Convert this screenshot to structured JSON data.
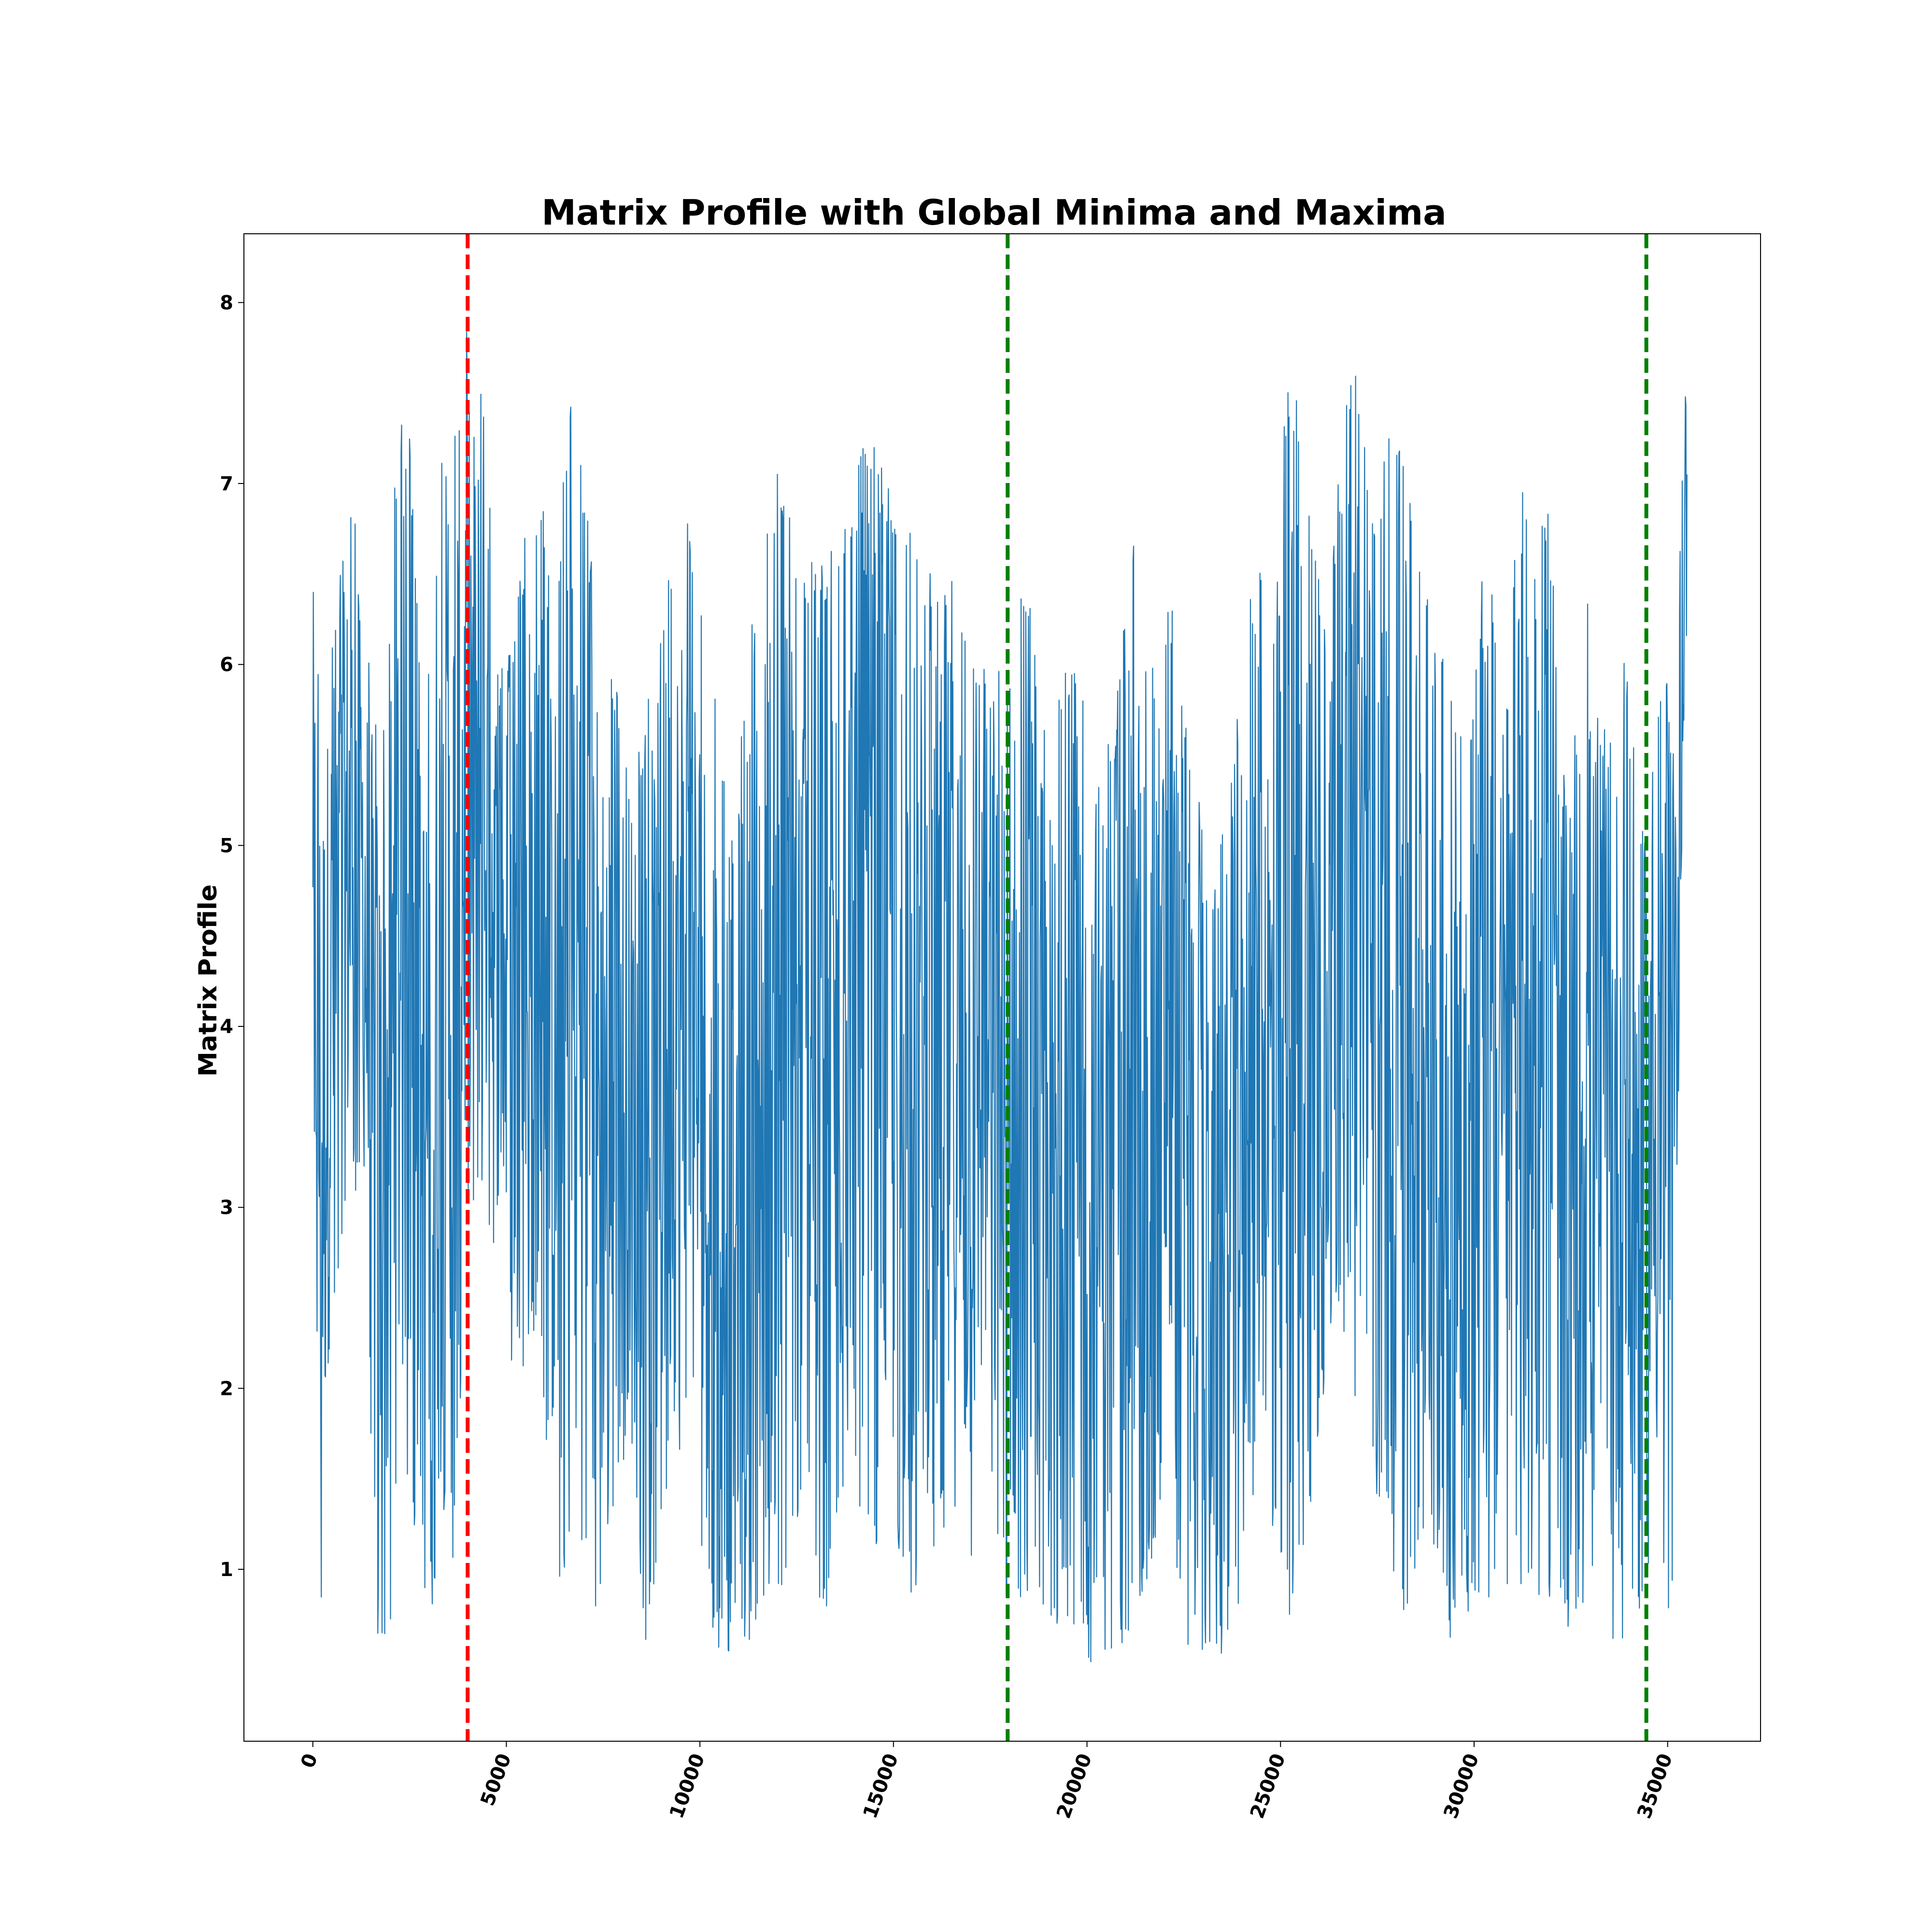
{
  "chart_data": {
    "type": "line",
    "title": "Matrix Profile with Global Minima and Maxima",
    "xlabel": "",
    "ylabel": "Matrix Profile",
    "xlim": [
      -1780,
      37400
    ],
    "ylim": [
      0.05,
      8.38
    ],
    "xticks": [
      0,
      5000,
      10000,
      15000,
      20000,
      25000,
      30000,
      35000
    ],
    "yticks": [
      1,
      2,
      3,
      4,
      5,
      6,
      7,
      8
    ],
    "xtick_rotation": 70,
    "grid": false,
    "series": [
      {
        "color": "#1f77b4",
        "x_range": [
          0,
          35500
        ],
        "envelope_upper": [
          [
            0,
            6.7
          ],
          [
            200,
            5.8
          ],
          [
            600,
            6.4
          ],
          [
            1000,
            7.0
          ],
          [
            1400,
            6.2
          ],
          [
            1800,
            5.6
          ],
          [
            2200,
            7.4
          ],
          [
            2500,
            7.3
          ],
          [
            2800,
            5.8
          ],
          [
            3200,
            7.4
          ],
          [
            3500,
            7.0
          ],
          [
            3800,
            7.8
          ],
          [
            4000,
            7.95
          ],
          [
            4400,
            7.6
          ],
          [
            4800,
            6.0
          ],
          [
            5200,
            6.2
          ],
          [
            5800,
            7.3
          ],
          [
            6200,
            6.2
          ],
          [
            6700,
            7.7
          ],
          [
            7200,
            6.6
          ],
          [
            7800,
            5.9
          ],
          [
            8400,
            5.5
          ],
          [
            9000,
            6.3
          ],
          [
            9600,
            7.0
          ],
          [
            10200,
            6.0
          ],
          [
            10800,
            5.4
          ],
          [
            11200,
            6.0
          ],
          [
            11800,
            6.9
          ],
          [
            12000,
            7.1
          ],
          [
            12600,
            6.6
          ],
          [
            13200,
            6.6
          ],
          [
            13800,
            6.8
          ],
          [
            14100,
            7.3
          ],
          [
            14300,
            7.3
          ],
          [
            14700,
            7.1
          ],
          [
            15200,
            6.9
          ],
          [
            15600,
            6.6
          ],
          [
            16200,
            6.5
          ],
          [
            16600,
            6.6
          ],
          [
            17000,
            6.2
          ],
          [
            17600,
            6.0
          ],
          [
            18000,
            6.0
          ],
          [
            18400,
            6.6
          ],
          [
            19000,
            5.6
          ],
          [
            19600,
            6.1
          ],
          [
            20200,
            5.9
          ],
          [
            20700,
            5.7
          ],
          [
            21200,
            6.7
          ],
          [
            21600,
            6.0
          ],
          [
            22200,
            6.4
          ],
          [
            22800,
            5.3
          ],
          [
            23400,
            5.0
          ],
          [
            23800,
            5.6
          ],
          [
            24400,
            6.7
          ],
          [
            24800,
            6.1
          ],
          [
            25100,
            7.5
          ],
          [
            25400,
            7.6
          ],
          [
            25800,
            6.9
          ],
          [
            26200,
            6.2
          ],
          [
            26600,
            7.3
          ],
          [
            26900,
            7.7
          ],
          [
            27400,
            6.9
          ],
          [
            27900,
            7.4
          ],
          [
            28400,
            6.9
          ],
          [
            28900,
            6.4
          ],
          [
            29300,
            6.1
          ],
          [
            29800,
            5.4
          ],
          [
            30300,
            6.8
          ],
          [
            30800,
            5.6
          ],
          [
            31200,
            7.2
          ],
          [
            31600,
            6.5
          ],
          [
            31900,
            7.0
          ],
          [
            32400,
            5.2
          ],
          [
            32900,
            6.4
          ],
          [
            33400,
            5.6
          ],
          [
            33900,
            6.1
          ],
          [
            34400,
            5.2
          ],
          [
            34900,
            6.1
          ],
          [
            35200,
            5.5
          ],
          [
            35400,
            7.8
          ]
        ],
        "envelope_lower": [
          [
            0,
            3.8
          ],
          [
            200,
            0.65
          ],
          [
            500,
            2.3
          ],
          [
            900,
            2.8
          ],
          [
            1300,
            3.3
          ],
          [
            1600,
            0.6
          ],
          [
            2000,
            0.65
          ],
          [
            2400,
            1.6
          ],
          [
            2800,
            0.7
          ],
          [
            3200,
            0.85
          ],
          [
            3600,
            0.8
          ],
          [
            4000,
            2.9
          ],
          [
            4400,
            3.0
          ],
          [
            4800,
            2.7
          ],
          [
            5200,
            1.8
          ],
          [
            5800,
            2.4
          ],
          [
            6400,
            0.6
          ],
          [
            6800,
            1.5
          ],
          [
            7200,
            0.6
          ],
          [
            7600,
            1.1
          ],
          [
            8200,
            1.7
          ],
          [
            8600,
            0.6
          ],
          [
            9200,
            1.5
          ],
          [
            9800,
            1.4
          ],
          [
            10400,
            0.55
          ],
          [
            10800,
            0.5
          ],
          [
            11400,
            0.6
          ],
          [
            12000,
            0.7
          ],
          [
            12600,
            1.3
          ],
          [
            13200,
            0.6
          ],
          [
            13800,
            1.6
          ],
          [
            14400,
            1.1
          ],
          [
            15000,
            1.0
          ],
          [
            15600,
            0.8
          ],
          [
            16200,
            1.2
          ],
          [
            16800,
            0.75
          ],
          [
            17400,
            1.6
          ],
          [
            17900,
            0.6
          ],
          [
            18400,
            0.7
          ],
          [
            19000,
            0.55
          ],
          [
            19600,
            0.6
          ],
          [
            20100,
            0.45
          ],
          [
            20800,
            0.55
          ],
          [
            21400,
            0.7
          ],
          [
            22000,
            1.4
          ],
          [
            22600,
            0.55
          ],
          [
            23200,
            0.5
          ],
          [
            23600,
            0.45
          ],
          [
            24000,
            0.9
          ],
          [
            24600,
            1.4
          ],
          [
            25200,
            0.7
          ],
          [
            25800,
            1.3
          ],
          [
            26400,
            2.5
          ],
          [
            27000,
            1.8
          ],
          [
            27600,
            1.3
          ],
          [
            28200,
            0.7
          ],
          [
            28800,
            1.3
          ],
          [
            29400,
            0.6
          ],
          [
            30000,
            0.8
          ],
          [
            30600,
            0.75
          ],
          [
            31200,
            0.7
          ],
          [
            31800,
            0.9
          ],
          [
            32400,
            0.6
          ],
          [
            33000,
            0.8
          ],
          [
            33600,
            0.55
          ],
          [
            34200,
            0.7
          ],
          [
            34700,
            1.2
          ],
          [
            35100,
            0.6
          ],
          [
            35400,
            5.5
          ]
        ]
      }
    ],
    "vertical_lines": [
      {
        "x": 4000,
        "color": "#ff0000",
        "style": "dashed"
      },
      {
        "x": 17950,
        "color": "#008000",
        "style": "dashed"
      },
      {
        "x": 34450,
        "color": "#008000",
        "style": "dashed"
      }
    ]
  }
}
